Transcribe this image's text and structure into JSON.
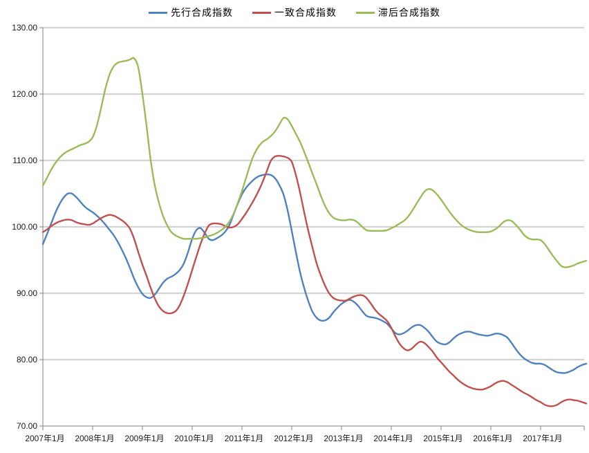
{
  "colors": {
    "background": "#FFFFFF",
    "gridline": "#A6A6A6",
    "axis": "#808080",
    "tick_text": "#1A1A1A"
  },
  "chart_data": {
    "type": "line",
    "title": "",
    "grid": true,
    "legend_position": "top",
    "x_axis": {
      "start": "2007-01",
      "end": "2017-12",
      "months_total": 132,
      "tick_labels": [
        "2007年1月",
        "2008年1月",
        "2009年1月",
        "2010年1月",
        "2011年1月",
        "2012年1月",
        "2013年1月",
        "2014年1月",
        "2015年1月",
        "2016年1月",
        "2017年1月"
      ]
    },
    "y_axis": {
      "min": 70,
      "max": 130,
      "step": 10,
      "tick_labels": [
        "130.00",
        "120.00",
        "110.00",
        "100.00",
        "90.00",
        "80.00",
        "70.00"
      ]
    },
    "series": [
      {
        "name": "先行合成指数",
        "color": "#4F81BD",
        "values": [
          97.4,
          98.9,
          100.5,
          102.1,
          103.4,
          104.4,
          105.0,
          105.0,
          104.5,
          103.8,
          103.1,
          102.6,
          102.2,
          101.7,
          101.1,
          100.4,
          99.6,
          98.8,
          97.8,
          96.6,
          95.3,
          93.8,
          92.2,
          90.9,
          89.9,
          89.4,
          89.3,
          89.8,
          90.7,
          91.6,
          92.2,
          92.5,
          92.9,
          93.5,
          94.5,
          96.2,
          98.2,
          99.5,
          99.8,
          99.1,
          98.2,
          98.0,
          98.3,
          98.7,
          99.3,
          100.3,
          101.9,
          103.5,
          104.9,
          105.9,
          106.6,
          107.2,
          107.6,
          107.8,
          107.9,
          107.8,
          107.3,
          106.3,
          104.9,
          102.5,
          99.4,
          96.2,
          93.2,
          90.8,
          88.8,
          87.2,
          86.3,
          85.9,
          85.9,
          86.3,
          87.1,
          87.8,
          88.4,
          88.8,
          89.0,
          88.7,
          88.1,
          87.3,
          86.6,
          86.4,
          86.3,
          86.1,
          85.8,
          85.4,
          84.7,
          84.0,
          83.8,
          84.0,
          84.4,
          84.9,
          85.2,
          85.2,
          84.8,
          84.2,
          83.4,
          82.7,
          82.4,
          82.3,
          82.6,
          83.2,
          83.7,
          84.0,
          84.2,
          84.2,
          84.0,
          83.8,
          83.7,
          83.6,
          83.7,
          83.9,
          83.9,
          83.7,
          83.3,
          82.5,
          81.6,
          80.8,
          80.2,
          79.8,
          79.5,
          79.4,
          79.4,
          79.2,
          78.8,
          78.4,
          78.1,
          78.0,
          78.0,
          78.2,
          78.5,
          78.9,
          79.2,
          79.4
        ]
      },
      {
        "name": "一致合成指数",
        "color": "#C0504D",
        "values": [
          99.2,
          99.6,
          100.1,
          100.5,
          100.8,
          101.0,
          101.1,
          101.0,
          100.7,
          100.5,
          100.4,
          100.3,
          100.5,
          100.9,
          101.3,
          101.6,
          101.8,
          101.7,
          101.4,
          101.0,
          100.5,
          99.7,
          98.2,
          96.2,
          94.3,
          92.6,
          90.8,
          89.2,
          88.0,
          87.3,
          87.0,
          87.0,
          87.3,
          88.2,
          89.7,
          91.5,
          93.5,
          95.5,
          97.4,
          99.0,
          100.2,
          100.5,
          100.5,
          100.4,
          100.1,
          99.9,
          100.0,
          100.4,
          101.2,
          102.1,
          103.1,
          104.2,
          105.4,
          106.8,
          108.4,
          110.0,
          110.6,
          110.7,
          110.6,
          110.4,
          109.8,
          107.8,
          105.2,
          102.2,
          99.4,
          96.9,
          94.5,
          92.7,
          91.2,
          90.0,
          89.3,
          89.0,
          88.9,
          88.9,
          89.2,
          89.5,
          89.7,
          89.7,
          89.3,
          88.5,
          87.6,
          86.9,
          86.4,
          85.8,
          84.8,
          83.5,
          82.4,
          81.7,
          81.4,
          81.7,
          82.3,
          82.7,
          82.5,
          81.9,
          81.2,
          80.3,
          79.6,
          78.9,
          78.2,
          77.6,
          77.0,
          76.5,
          76.1,
          75.8,
          75.6,
          75.5,
          75.5,
          75.7,
          76.0,
          76.4,
          76.7,
          76.8,
          76.6,
          76.2,
          75.8,
          75.4,
          75.0,
          74.7,
          74.3,
          73.9,
          73.6,
          73.2,
          73.0,
          73.0,
          73.2,
          73.6,
          73.9,
          74.0,
          73.9,
          73.8,
          73.6,
          73.4
        ]
      },
      {
        "name": "滞后合成指数",
        "color": "#9BBB59",
        "values": [
          106.2,
          107.4,
          108.6,
          109.6,
          110.4,
          111.0,
          111.4,
          111.7,
          112.0,
          112.3,
          112.5,
          112.8,
          113.5,
          115.2,
          117.8,
          120.6,
          122.8,
          124.1,
          124.7,
          124.9,
          125.0,
          125.2,
          125.4,
          124.0,
          120.0,
          115.2,
          110.0,
          106.2,
          103.6,
          101.6,
          100.2,
          99.2,
          98.7,
          98.4,
          98.2,
          98.2,
          98.2,
          98.2,
          98.3,
          98.4,
          98.6,
          98.8,
          99.1,
          99.5,
          100.0,
          100.8,
          102.0,
          103.6,
          105.4,
          107.4,
          109.4,
          111.0,
          112.1,
          112.8,
          113.2,
          113.7,
          114.4,
          115.4,
          116.4,
          116.2,
          115.2,
          114.0,
          112.8,
          111.3,
          109.7,
          108.0,
          106.4,
          104.7,
          103.2,
          102.1,
          101.4,
          101.1,
          101.0,
          101.0,
          101.1,
          101.0,
          100.6,
          100.0,
          99.5,
          99.4,
          99.4,
          99.4,
          99.4,
          99.5,
          99.8,
          100.1,
          100.5,
          100.9,
          101.5,
          102.4,
          103.4,
          104.4,
          105.3,
          105.7,
          105.5,
          104.9,
          104.1,
          103.2,
          102.3,
          101.5,
          100.8,
          100.2,
          99.8,
          99.5,
          99.3,
          99.2,
          99.2,
          99.2,
          99.3,
          99.6,
          100.1,
          100.7,
          101.0,
          100.9,
          100.3,
          99.6,
          98.8,
          98.3,
          98.1,
          98.1,
          98.0,
          97.4,
          96.5,
          95.6,
          94.8,
          94.1,
          93.9,
          94.0,
          94.2,
          94.5,
          94.7,
          94.9
        ]
      }
    ]
  }
}
